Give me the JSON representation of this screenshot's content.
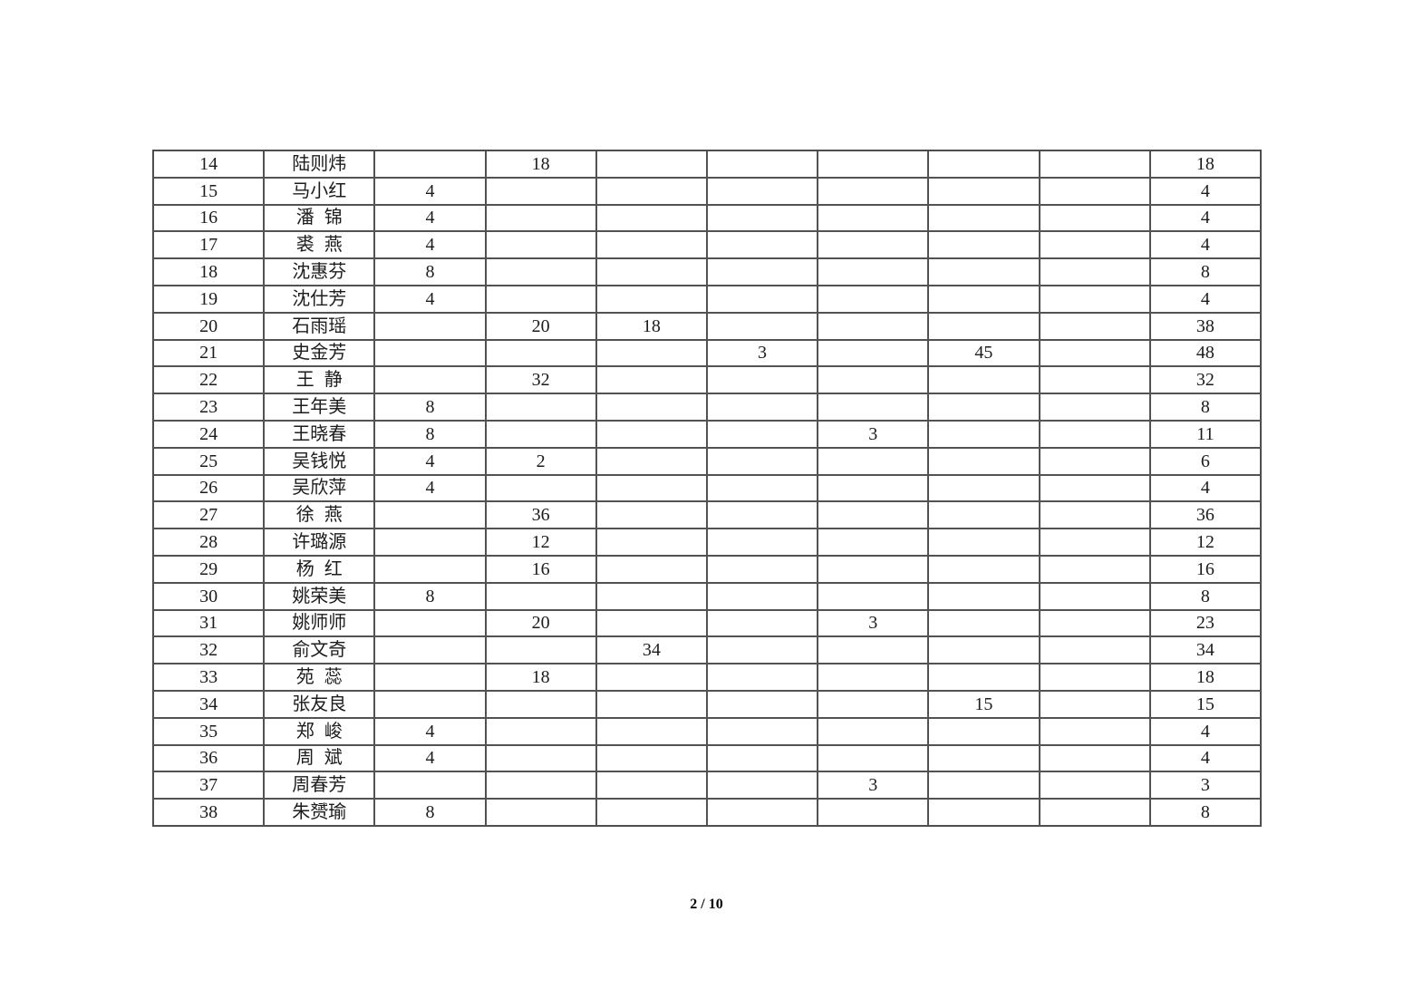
{
  "footer": {
    "page_indicator": "2 / 10"
  },
  "colors": {
    "page_background": "#ffffff",
    "grid_line": "#525252",
    "ink": "#1c1c1c"
  },
  "table": {
    "visible_header": false,
    "num_columns": 10,
    "rows": [
      [
        "14",
        "陆则炜",
        "",
        "18",
        "",
        "",
        "",
        "",
        "",
        "18"
      ],
      [
        "15",
        "马小红",
        "4",
        "",
        "",
        "",
        "",
        "",
        "",
        "4"
      ],
      [
        "16",
        "潘锦",
        "4",
        "",
        "",
        "",
        "",
        "",
        "",
        "4"
      ],
      [
        "17",
        "裘燕",
        "4",
        "",
        "",
        "",
        "",
        "",
        "",
        "4"
      ],
      [
        "18",
        "沈惠芬",
        "8",
        "",
        "",
        "",
        "",
        "",
        "",
        "8"
      ],
      [
        "19",
        "沈仕芳",
        "4",
        "",
        "",
        "",
        "",
        "",
        "",
        "4"
      ],
      [
        "20",
        "石雨瑶",
        "",
        "20",
        "18",
        "",
        "",
        "",
        "",
        "38"
      ],
      [
        "21",
        "史金芳",
        "",
        "",
        "",
        "3",
        "",
        "45",
        "",
        "48"
      ],
      [
        "22",
        "王静",
        "",
        "32",
        "",
        "",
        "",
        "",
        "",
        "32"
      ],
      [
        "23",
        "王年美",
        "8",
        "",
        "",
        "",
        "",
        "",
        "",
        "8"
      ],
      [
        "24",
        "王晓春",
        "8",
        "",
        "",
        "",
        "3",
        "",
        "",
        "11"
      ],
      [
        "25",
        "吴钱悦",
        "4",
        "2",
        "",
        "",
        "",
        "",
        "",
        "6"
      ],
      [
        "26",
        "吴欣萍",
        "4",
        "",
        "",
        "",
        "",
        "",
        "",
        "4"
      ],
      [
        "27",
        "徐燕",
        "",
        "36",
        "",
        "",
        "",
        "",
        "",
        "36"
      ],
      [
        "28",
        "许璐源",
        "",
        "12",
        "",
        "",
        "",
        "",
        "",
        "12"
      ],
      [
        "29",
        "杨红",
        "",
        "16",
        "",
        "",
        "",
        "",
        "",
        "16"
      ],
      [
        "30",
        "姚荣美",
        "8",
        "",
        "",
        "",
        "",
        "",
        "",
        "8"
      ],
      [
        "31",
        "姚师师",
        "",
        "20",
        "",
        "",
        "3",
        "",
        "",
        "23"
      ],
      [
        "32",
        "俞文奇",
        "",
        "",
        "34",
        "",
        "",
        "",
        "",
        "34"
      ],
      [
        "33",
        "苑蕊",
        "",
        "18",
        "",
        "",
        "",
        "",
        "",
        "18"
      ],
      [
        "34",
        "张友良",
        "",
        "",
        "",
        "",
        "",
        "15",
        "",
        "15"
      ],
      [
        "35",
        "郑峻",
        "4",
        "",
        "",
        "",
        "",
        "",
        "",
        "4"
      ],
      [
        "36",
        "周斌",
        "4",
        "",
        "",
        "",
        "",
        "",
        "",
        "4"
      ],
      [
        "37",
        "周春芳",
        "",
        "",
        "",
        "",
        "3",
        "",
        "",
        "3"
      ],
      [
        "38",
        "朱赟瑜",
        "8",
        "",
        "",
        "",
        "",
        "",
        "",
        "8"
      ]
    ]
  }
}
